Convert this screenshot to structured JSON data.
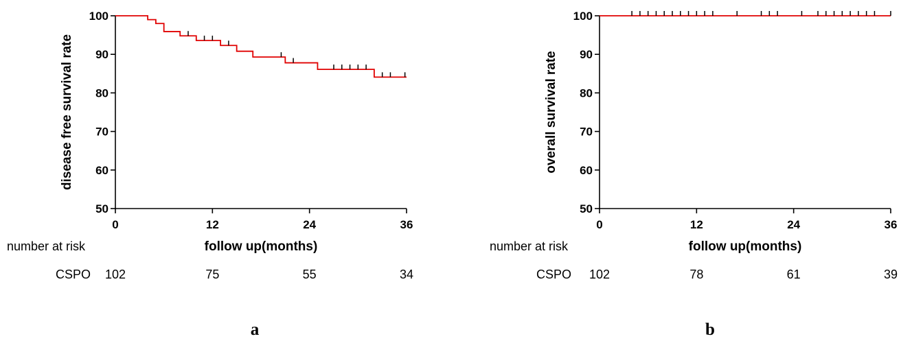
{
  "chart_data": [
    {
      "type": "line",
      "panel_label": "a",
      "xlabel": "follow up(months)",
      "ylabel": "disease free survival rate",
      "xlim": [
        0,
        36
      ],
      "ylim": [
        50,
        100
      ],
      "xticks": [
        0,
        12,
        24,
        36
      ],
      "yticks": [
        50,
        60,
        70,
        80,
        90,
        100
      ],
      "grid": false,
      "series": [
        {
          "color": "#e00000",
          "steps": [
            [
              0,
              100
            ],
            [
              4,
              99.0
            ],
            [
              5,
              98.0
            ],
            [
              6,
              95.9
            ],
            [
              8,
              94.8
            ],
            [
              10,
              93.6
            ],
            [
              13,
              92.3
            ],
            [
              15,
              90.8
            ],
            [
              17,
              89.3
            ],
            [
              21,
              87.8
            ],
            [
              25,
              86.1
            ],
            [
              32,
              84.1
            ],
            [
              36,
              84.1
            ]
          ],
          "censored": [
            [
              9,
              94.8
            ],
            [
              11,
              93.6
            ],
            [
              12,
              93.6
            ],
            [
              14,
              92.3
            ],
            [
              20.5,
              89.3
            ],
            [
              22,
              87.8
            ],
            [
              27,
              86.1
            ],
            [
              28,
              86.1
            ],
            [
              29,
              86.1
            ],
            [
              30,
              86.1
            ],
            [
              31,
              86.1
            ],
            [
              33,
              84.1
            ],
            [
              34,
              84.1
            ],
            [
              35.8,
              84.1
            ]
          ]
        }
      ],
      "risk_table": {
        "title": "number at risk",
        "group": "CSPO",
        "times": [
          0,
          12,
          24,
          36
        ],
        "counts": [
          "102",
          "75",
          "55",
          "34"
        ]
      }
    },
    {
      "type": "line",
      "panel_label": "b",
      "xlabel": "follow up(months)",
      "ylabel": "overall survival rate",
      "xlim": [
        0,
        36
      ],
      "ylim": [
        50,
        100
      ],
      "xticks": [
        0,
        12,
        24,
        36
      ],
      "yticks": [
        50,
        60,
        70,
        80,
        90,
        100
      ],
      "grid": false,
      "series": [
        {
          "color": "#e00000",
          "steps": [
            [
              0,
              100
            ],
            [
              36,
              100
            ]
          ],
          "censored": [
            [
              4,
              100
            ],
            [
              5,
              100
            ],
            [
              6,
              100
            ],
            [
              7,
              100
            ],
            [
              8,
              100
            ],
            [
              9,
              100
            ],
            [
              10,
              100
            ],
            [
              11,
              100
            ],
            [
              12,
              100
            ],
            [
              13,
              100
            ],
            [
              14,
              100
            ],
            [
              17,
              100
            ],
            [
              20,
              100
            ],
            [
              21,
              100
            ],
            [
              22,
              100
            ],
            [
              25,
              100
            ],
            [
              27,
              100
            ],
            [
              28,
              100
            ],
            [
              29,
              100
            ],
            [
              30,
              100
            ],
            [
              31,
              100
            ],
            [
              32,
              100
            ],
            [
              33,
              100
            ],
            [
              34,
              100
            ],
            [
              36,
              100
            ]
          ]
        }
      ],
      "risk_table": {
        "title": "number at risk",
        "group": "CSPO",
        "times": [
          0,
          12,
          24,
          36
        ],
        "counts": [
          "102",
          "78",
          "61",
          "39"
        ]
      }
    }
  ]
}
